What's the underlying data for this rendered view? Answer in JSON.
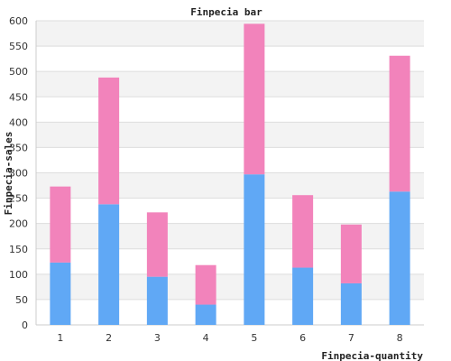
{
  "chart_data": {
    "type": "bar",
    "stacked": true,
    "title": "Finpecia bar",
    "xlabel": "Finpecia-quantity",
    "ylabel": "Finpecia-sales",
    "categories": [
      "1",
      "2",
      "3",
      "4",
      "5",
      "6",
      "7",
      "8"
    ],
    "series": [
      {
        "values": [
          123,
          238,
          95,
          40,
          297,
          113,
          82,
          263
        ],
        "color": "#60a8f5"
      },
      {
        "values": [
          150,
          250,
          127,
          78,
          297,
          143,
          116,
          268
        ],
        "color": "#f283bb"
      }
    ],
    "ylim": [
      0,
      600
    ],
    "yticks": [
      0,
      50,
      100,
      150,
      200,
      250,
      300,
      350,
      400,
      450,
      500,
      550,
      600
    ],
    "grid": true,
    "band_colors": [
      "#f3f3f3",
      "#ffffff"
    ],
    "legend": "none"
  }
}
